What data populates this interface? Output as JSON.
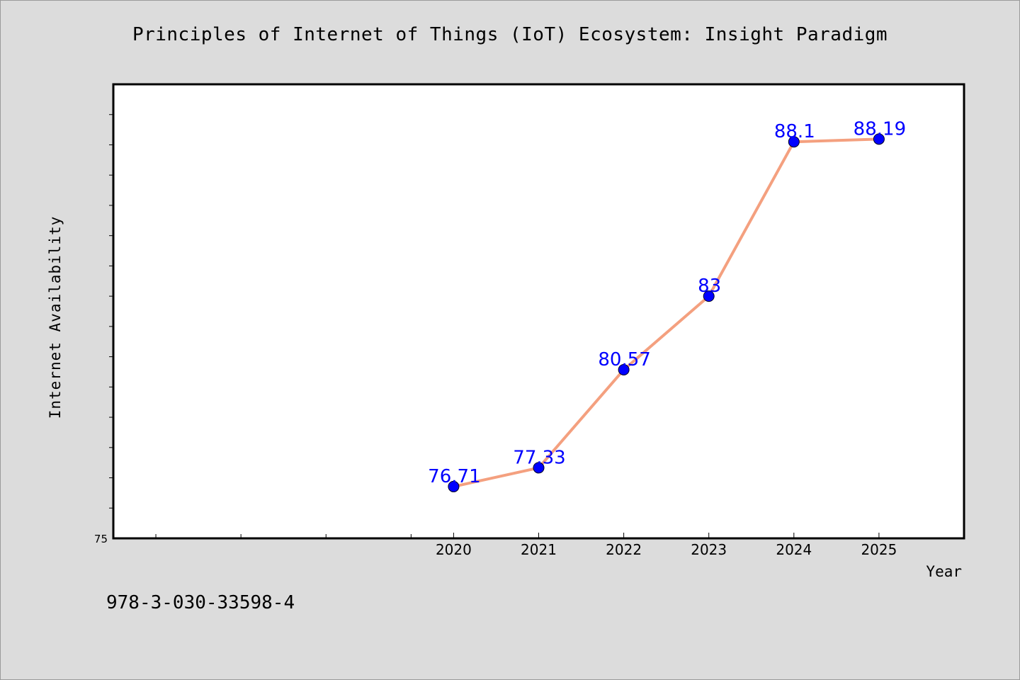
{
  "page": {
    "isbn": "978-3-030-33598-4"
  },
  "chart_data": {
    "type": "line",
    "title": "Principles of Internet of Things (IoT) Ecosystem: Insight Paradigm",
    "xlabel": "Year",
    "ylabel": "Internet Availability",
    "x": [
      2020,
      2021,
      2022,
      2023,
      2024,
      2025
    ],
    "values": [
      76.71,
      77.33,
      80.57,
      83,
      88.1,
      88.19
    ],
    "data_labels": [
      "76.71",
      "77.33",
      "80.57",
      "83",
      "88.1",
      "88.19"
    ],
    "xlim": [
      2016,
      2026
    ],
    "ylim": [
      75,
      90
    ],
    "y_tick_labels": [
      "75"
    ],
    "x_tick_labels": [
      "2020",
      "2021",
      "2022",
      "2023",
      "2024",
      "2025"
    ],
    "grid": false,
    "colors": {
      "line": "#f4a07f",
      "marker": "#0000ff",
      "label": "#0000ff",
      "plot_background": "#ffffff",
      "page_background": "#dcdcdc"
    }
  }
}
